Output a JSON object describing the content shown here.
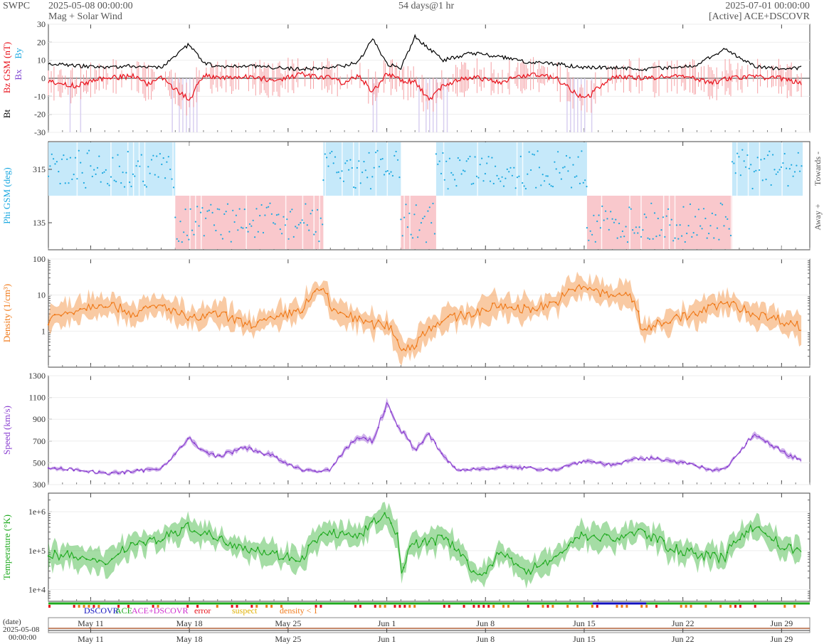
{
  "header": {
    "brand": "SWPC",
    "start": "2025-05-08 00:00:00",
    "subtitle": "Mag + Solar Wind",
    "span": "54 days@1 hr",
    "end": "2025-07-01 00:00:00",
    "source": "[Active] ACE+DSCOVR"
  },
  "chart_data": {
    "type": "line",
    "x_start": "2025-05-08",
    "x_end": "2025-07-01",
    "x_ticks": [
      "May 11",
      "May 18",
      "May 25",
      "Jun 1",
      "Jun 8",
      "Jun 15",
      "Jun 22",
      "Jun 29"
    ],
    "x_tick_days": [
      3,
      10,
      17,
      24,
      31,
      38,
      45,
      52
    ],
    "panels": [
      {
        "id": "mag",
        "ylabels": [
          "Bt",
          "Bz GSM (nT)",
          "Bx",
          "By"
        ],
        "colors": {
          "bt": "#000000",
          "bz": "#e8101a",
          "bx": "#7b3fd0",
          "by": "#1aa8e0"
        },
        "ylim": [
          -30,
          30
        ],
        "yticks": [
          30,
          20,
          10,
          0,
          -10,
          -20,
          -30
        ],
        "series": [
          {
            "name": "Bt",
            "days": [
              0,
              2,
              4,
              6,
              7,
              8,
              10,
              11,
              12,
              14,
              16,
              18,
              20,
              21,
              22,
              23,
              24,
              25,
              26,
              28,
              30,
              32,
              34,
              36,
              38,
              40,
              42,
              44,
              46,
              47,
              48,
              50,
              52,
              53.5
            ],
            "values": [
              8,
              7,
              6,
              7,
              6,
              6,
              19,
              9,
              6,
              7,
              6,
              5,
              6,
              7,
              9,
              22,
              8,
              6,
              23,
              10,
              14,
              12,
              9,
              8,
              6,
              6,
              5,
              6,
              7,
              12,
              16,
              7,
              5,
              6
            ]
          },
          {
            "name": "Bz GSM",
            "days": [
              0,
              2,
              4,
              6,
              7,
              8,
              10,
              11,
              12,
              14,
              16,
              18,
              20,
              21,
              22,
              23,
              24,
              25,
              26,
              27,
              28,
              30,
              32,
              34,
              36,
              38,
              40,
              42,
              44,
              46,
              47,
              48,
              50,
              52,
              53.5
            ],
            "values": [
              -2,
              -4,
              0,
              1,
              -3,
              0,
              -12,
              2,
              0,
              1,
              -1,
              2,
              0,
              -3,
              2,
              -8,
              3,
              -1,
              -2,
              -12,
              -4,
              1,
              -2,
              2,
              0,
              -12,
              1,
              0,
              1,
              0,
              -3,
              0,
              1,
              0,
              -3
            ]
          }
        ]
      },
      {
        "id": "phi",
        "ylabel": "Phi GSM (deg)",
        "right_labels": [
          "Towards -",
          "Away +"
        ],
        "color": "#1aa8e0",
        "yticks": [
          315,
          135
        ],
        "sectors": [
          {
            "from": 0,
            "to": 9,
            "sign": "towards"
          },
          {
            "from": 9,
            "to": 19.5,
            "sign": "away"
          },
          {
            "from": 19.5,
            "to": 25,
            "sign": "towards"
          },
          {
            "from": 25,
            "to": 27.5,
            "sign": "away"
          },
          {
            "from": 27.5,
            "to": 38.2,
            "sign": "towards"
          },
          {
            "from": 38.2,
            "to": 48.5,
            "sign": "away"
          },
          {
            "from": 48.5,
            "to": 53.5,
            "sign": "towards"
          }
        ]
      },
      {
        "id": "density",
        "ylabel": "Density (1/cm³)",
        "color": "#f07a1a",
        "scale": "log",
        "ylim": [
          0.1,
          100
        ],
        "yticks": [
          100,
          10,
          1
        ],
        "series": [
          {
            "name": "Density",
            "days": [
              0,
              2,
              4,
              6,
              8,
              10,
              12,
              14,
              16,
              18,
              19.5,
              20,
              22,
              23,
              24,
              25,
              26,
              28,
              30,
              32,
              34,
              36,
              38,
              39,
              40,
              41,
              42,
              43,
              44,
              46,
              48,
              50,
              52,
              53.5
            ],
            "values": [
              2,
              4,
              6,
              3,
              5,
              2,
              3,
              1.5,
              2,
              4,
              15,
              4,
              2,
              1.5,
              1.5,
              0.3,
              0.4,
              2,
              3,
              5,
              4,
              6,
              18,
              12,
              9,
              12,
              1,
              1.5,
              2,
              3,
              6,
              3,
              2,
              1.2
            ]
          }
        ]
      },
      {
        "id": "speed",
        "ylabel": "Speed (km/s)",
        "color": "#8a3fd0",
        "ylim": [
          300,
          1300
        ],
        "yticks": [
          1300,
          1100,
          900,
          700,
          500,
          300
        ],
        "series": [
          {
            "name": "Speed",
            "days": [
              0,
              2,
              4,
              6,
              8,
              10,
              11,
              12,
              14,
              16,
              17,
              18,
              19,
              20,
              21,
              22,
              23,
              24,
              25,
              26,
              27,
              28,
              29,
              30,
              32,
              34,
              36,
              38,
              40,
              42,
              44,
              46,
              47,
              48,
              50,
              51,
              52,
              53.5
            ],
            "values": [
              450,
              440,
              400,
              420,
              450,
              720,
              600,
              560,
              640,
              560,
              480,
              440,
              420,
              430,
              620,
              740,
              700,
              1040,
              800,
              620,
              760,
              560,
              430,
              440,
              460,
              450,
              440,
              520,
              480,
              540,
              530,
              470,
              430,
              440,
              760,
              700,
              600,
              520
            ]
          }
        ]
      },
      {
        "id": "temperature",
        "ylabel": "Temperature (°K)",
        "color": "#1faa1f",
        "scale": "log",
        "ylim": [
          5000,
          3000000
        ],
        "ytick_labels": [
          "1e+6",
          "1e+5",
          "1e+4"
        ],
        "yticks": [
          1000000,
          100000,
          10000
        ],
        "series": [
          {
            "name": "Temperature",
            "days": [
              0,
              2,
              4,
              6,
              8,
              10,
              12,
              14,
              16,
              18,
              20,
              22,
              24,
              25,
              26,
              28,
              30,
              31,
              32,
              34,
              36,
              38,
              40,
              42,
              44,
              46,
              48,
              50,
              52,
              53.5
            ],
            "values": [
              80000,
              70000,
              40000,
              150000,
              200000,
              400000,
              200000,
              120000,
              80000,
              60000,
              300000,
              200000,
              800000,
              20000,
              150000,
              200000,
              30000,
              20000,
              80000,
              30000,
              60000,
              250000,
              200000,
              300000,
              120000,
              80000,
              60000,
              400000,
              120000,
              100000
            ]
          }
        ]
      }
    ],
    "source_legend": [
      {
        "label": "DSCOVR",
        "color": "#1010c0"
      },
      {
        "label": "ACE",
        "color": "#1faa1f"
      },
      {
        "label": "ACE+DSCOVR",
        "color": "#d030d0"
      },
      {
        "label": "error",
        "color": "#e8101a"
      },
      {
        "label": "suspect",
        "color": "#e0b000"
      },
      {
        "label": "density < 1",
        "color": "#f07a1a"
      }
    ],
    "overview": {
      "date_label": "(date)",
      "date": "2025-05-08",
      "time": "00:00:00"
    }
  }
}
